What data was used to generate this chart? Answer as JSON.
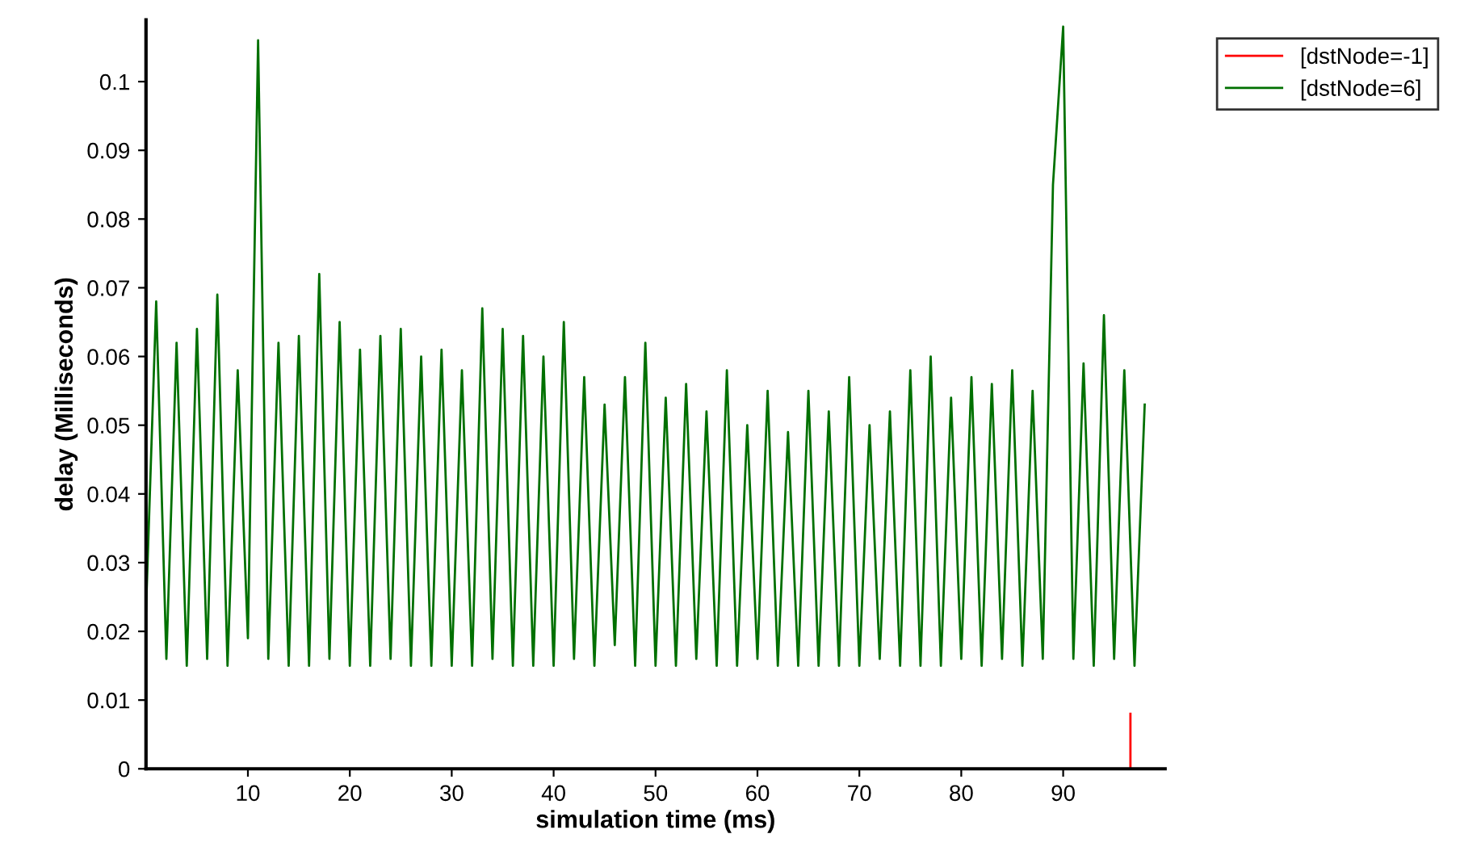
{
  "chart_data": {
    "type": "line",
    "xlabel": "simulation time (ms)",
    "ylabel": "delay (Milliseconds)",
    "xlim": [
      0,
      100
    ],
    "ylim": [
      0,
      0.109
    ],
    "xticks": [
      10,
      20,
      30,
      40,
      50,
      60,
      70,
      80,
      90
    ],
    "yticks": [
      0,
      0.01,
      0.02,
      0.03,
      0.04,
      0.05,
      0.06,
      0.07,
      0.08,
      0.09,
      0.1
    ],
    "grid": false,
    "legend": "top right",
    "marker": "none",
    "line_style": "solid",
    "series": [
      {
        "name": "[dstNode=-1]",
        "color": "#ff0000",
        "x": [
          96.6,
          96.6
        ],
        "values": [
          0,
          0.008
        ]
      },
      {
        "name": "[dstNode=6]",
        "color": "#007000",
        "x": [
          0,
          1,
          2,
          3,
          4,
          5,
          6,
          7,
          8,
          9,
          10,
          11,
          12,
          13,
          14,
          15,
          16,
          17,
          18,
          19,
          20,
          21,
          22,
          23,
          24,
          25,
          26,
          27,
          28,
          29,
          30,
          31,
          32,
          33,
          34,
          35,
          36,
          37,
          38,
          39,
          40,
          41,
          42,
          43,
          44,
          45,
          46,
          47,
          48,
          49,
          50,
          51,
          52,
          53,
          54,
          55,
          56,
          57,
          58,
          59,
          60,
          61,
          62,
          63,
          64,
          65,
          66,
          67,
          68,
          69,
          70,
          71,
          72,
          73,
          74,
          75,
          76,
          77,
          78,
          79,
          80,
          81,
          82,
          83,
          84,
          85,
          86,
          87,
          88,
          89,
          90,
          91,
          92,
          93,
          94,
          95,
          96,
          97,
          98
        ],
        "values": [
          0.023,
          0.068,
          0.016,
          0.062,
          0.015,
          0.064,
          0.016,
          0.069,
          0.015,
          0.058,
          0.019,
          0.106,
          0.016,
          0.062,
          0.015,
          0.063,
          0.015,
          0.072,
          0.016,
          0.065,
          0.015,
          0.061,
          0.015,
          0.063,
          0.016,
          0.064,
          0.015,
          0.06,
          0.015,
          0.061,
          0.015,
          0.058,
          0.015,
          0.067,
          0.016,
          0.064,
          0.015,
          0.063,
          0.015,
          0.06,
          0.015,
          0.065,
          0.016,
          0.057,
          0.015,
          0.053,
          0.018,
          0.057,
          0.015,
          0.062,
          0.015,
          0.054,
          0.015,
          0.056,
          0.016,
          0.052,
          0.015,
          0.058,
          0.015,
          0.05,
          0.016,
          0.055,
          0.015,
          0.049,
          0.015,
          0.055,
          0.015,
          0.052,
          0.015,
          0.057,
          0.015,
          0.05,
          0.016,
          0.052,
          0.015,
          0.058,
          0.015,
          0.06,
          0.015,
          0.054,
          0.016,
          0.057,
          0.015,
          0.056,
          0.016,
          0.058,
          0.015,
          0.055,
          0.016,
          0.085,
          0.108,
          0.016,
          0.059,
          0.015,
          0.066,
          0.016,
          0.058,
          0.015,
          0.053
        ]
      }
    ]
  }
}
